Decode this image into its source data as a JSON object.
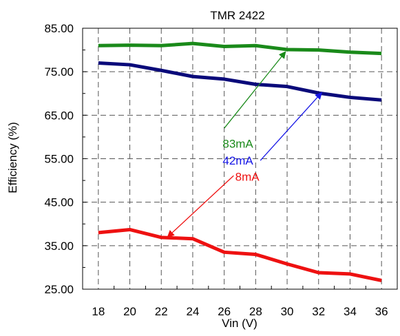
{
  "chart_data": {
    "type": "line",
    "title": "TMR 2422",
    "xlabel": "Vin (V)",
    "ylabel": "Efficiency (%)",
    "xlim": [
      17,
      37
    ],
    "ylim": [
      25,
      85
    ],
    "x": [
      18,
      20,
      22,
      24,
      26,
      28,
      30,
      32,
      34,
      36
    ],
    "x_ticks": [
      "18",
      "20",
      "22",
      "24",
      "26",
      "28",
      "30",
      "32",
      "34",
      "36"
    ],
    "y_ticks": [
      "25.00",
      "35.00",
      "45.00",
      "55.00",
      "65.00",
      "75.00",
      "85.00"
    ],
    "grid": true,
    "series": [
      {
        "name": "83mA",
        "color": "#1a8a1a",
        "values": [
          81.0,
          81.1,
          81.0,
          81.5,
          80.8,
          81.0,
          80.1,
          80.0,
          79.5,
          79.2
        ]
      },
      {
        "name": "42mA",
        "color": "#0a0a7a",
        "values": [
          77.0,
          76.6,
          75.3,
          73.9,
          73.3,
          72.1,
          71.6,
          70.1,
          69.1,
          68.5
        ]
      },
      {
        "name": "8mA",
        "color": "#ee1111",
        "values": [
          38.0,
          38.7,
          36.9,
          36.6,
          33.5,
          33.0,
          30.8,
          28.8,
          28.5,
          27.0
        ]
      }
    ],
    "annotations": [
      {
        "text": "83mA",
        "color": "#1a8a1a",
        "label_x": 25.9,
        "label_y": 58.5,
        "arrow_from": [
          26.0,
          62.0
        ],
        "arrow_to": [
          29.9,
          79.6
        ]
      },
      {
        "text": "42mA",
        "color": "#1414e6",
        "label_x": 25.9,
        "label_y": 54.6,
        "arrow_from": [
          28.3,
          54.6
        ],
        "arrow_to": [
          32.2,
          70.2
        ]
      },
      {
        "text": "8mA",
        "color": "#ee1111",
        "label_x": 26.7,
        "label_y": 50.9,
        "arrow_from": [
          26.6,
          51.1
        ],
        "arrow_to": [
          22.4,
          37.0
        ]
      }
    ]
  }
}
